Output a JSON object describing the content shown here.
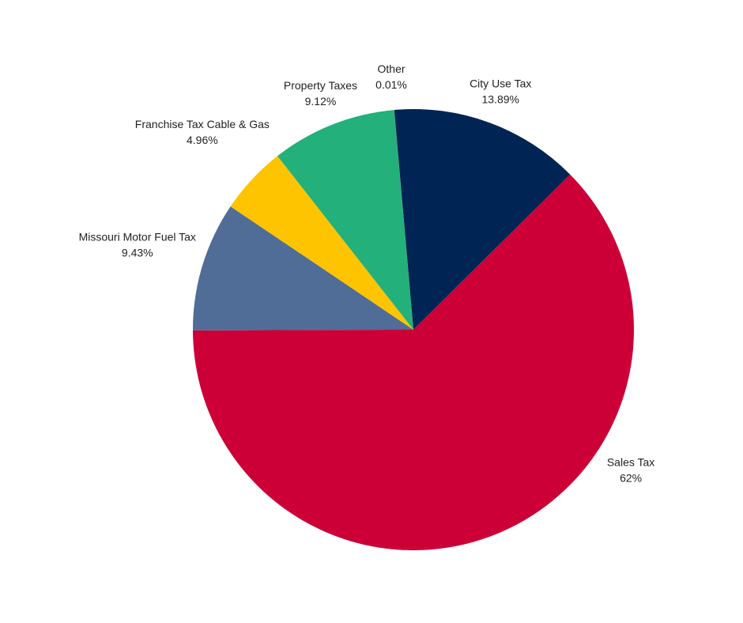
{
  "chart_data": {
    "type": "pie",
    "categories": [
      "City Use Tax",
      "Sales Tax",
      "Missouri Motor Fuel Tax",
      "Franchise Tax Cable & Gas",
      "Property Taxes",
      "Other"
    ],
    "values": [
      13.89,
      62,
      9.43,
      4.96,
      9.12,
      0.01
    ],
    "value_labels": [
      "13.89%",
      "62%",
      "9.43%",
      "4.96%",
      "9.12%",
      "0.01%"
    ],
    "colors": [
      "#002554",
      "#cc0037",
      "#4f6d96",
      "#ffc400",
      "#23b07a",
      "#7f7f7f"
    ]
  }
}
